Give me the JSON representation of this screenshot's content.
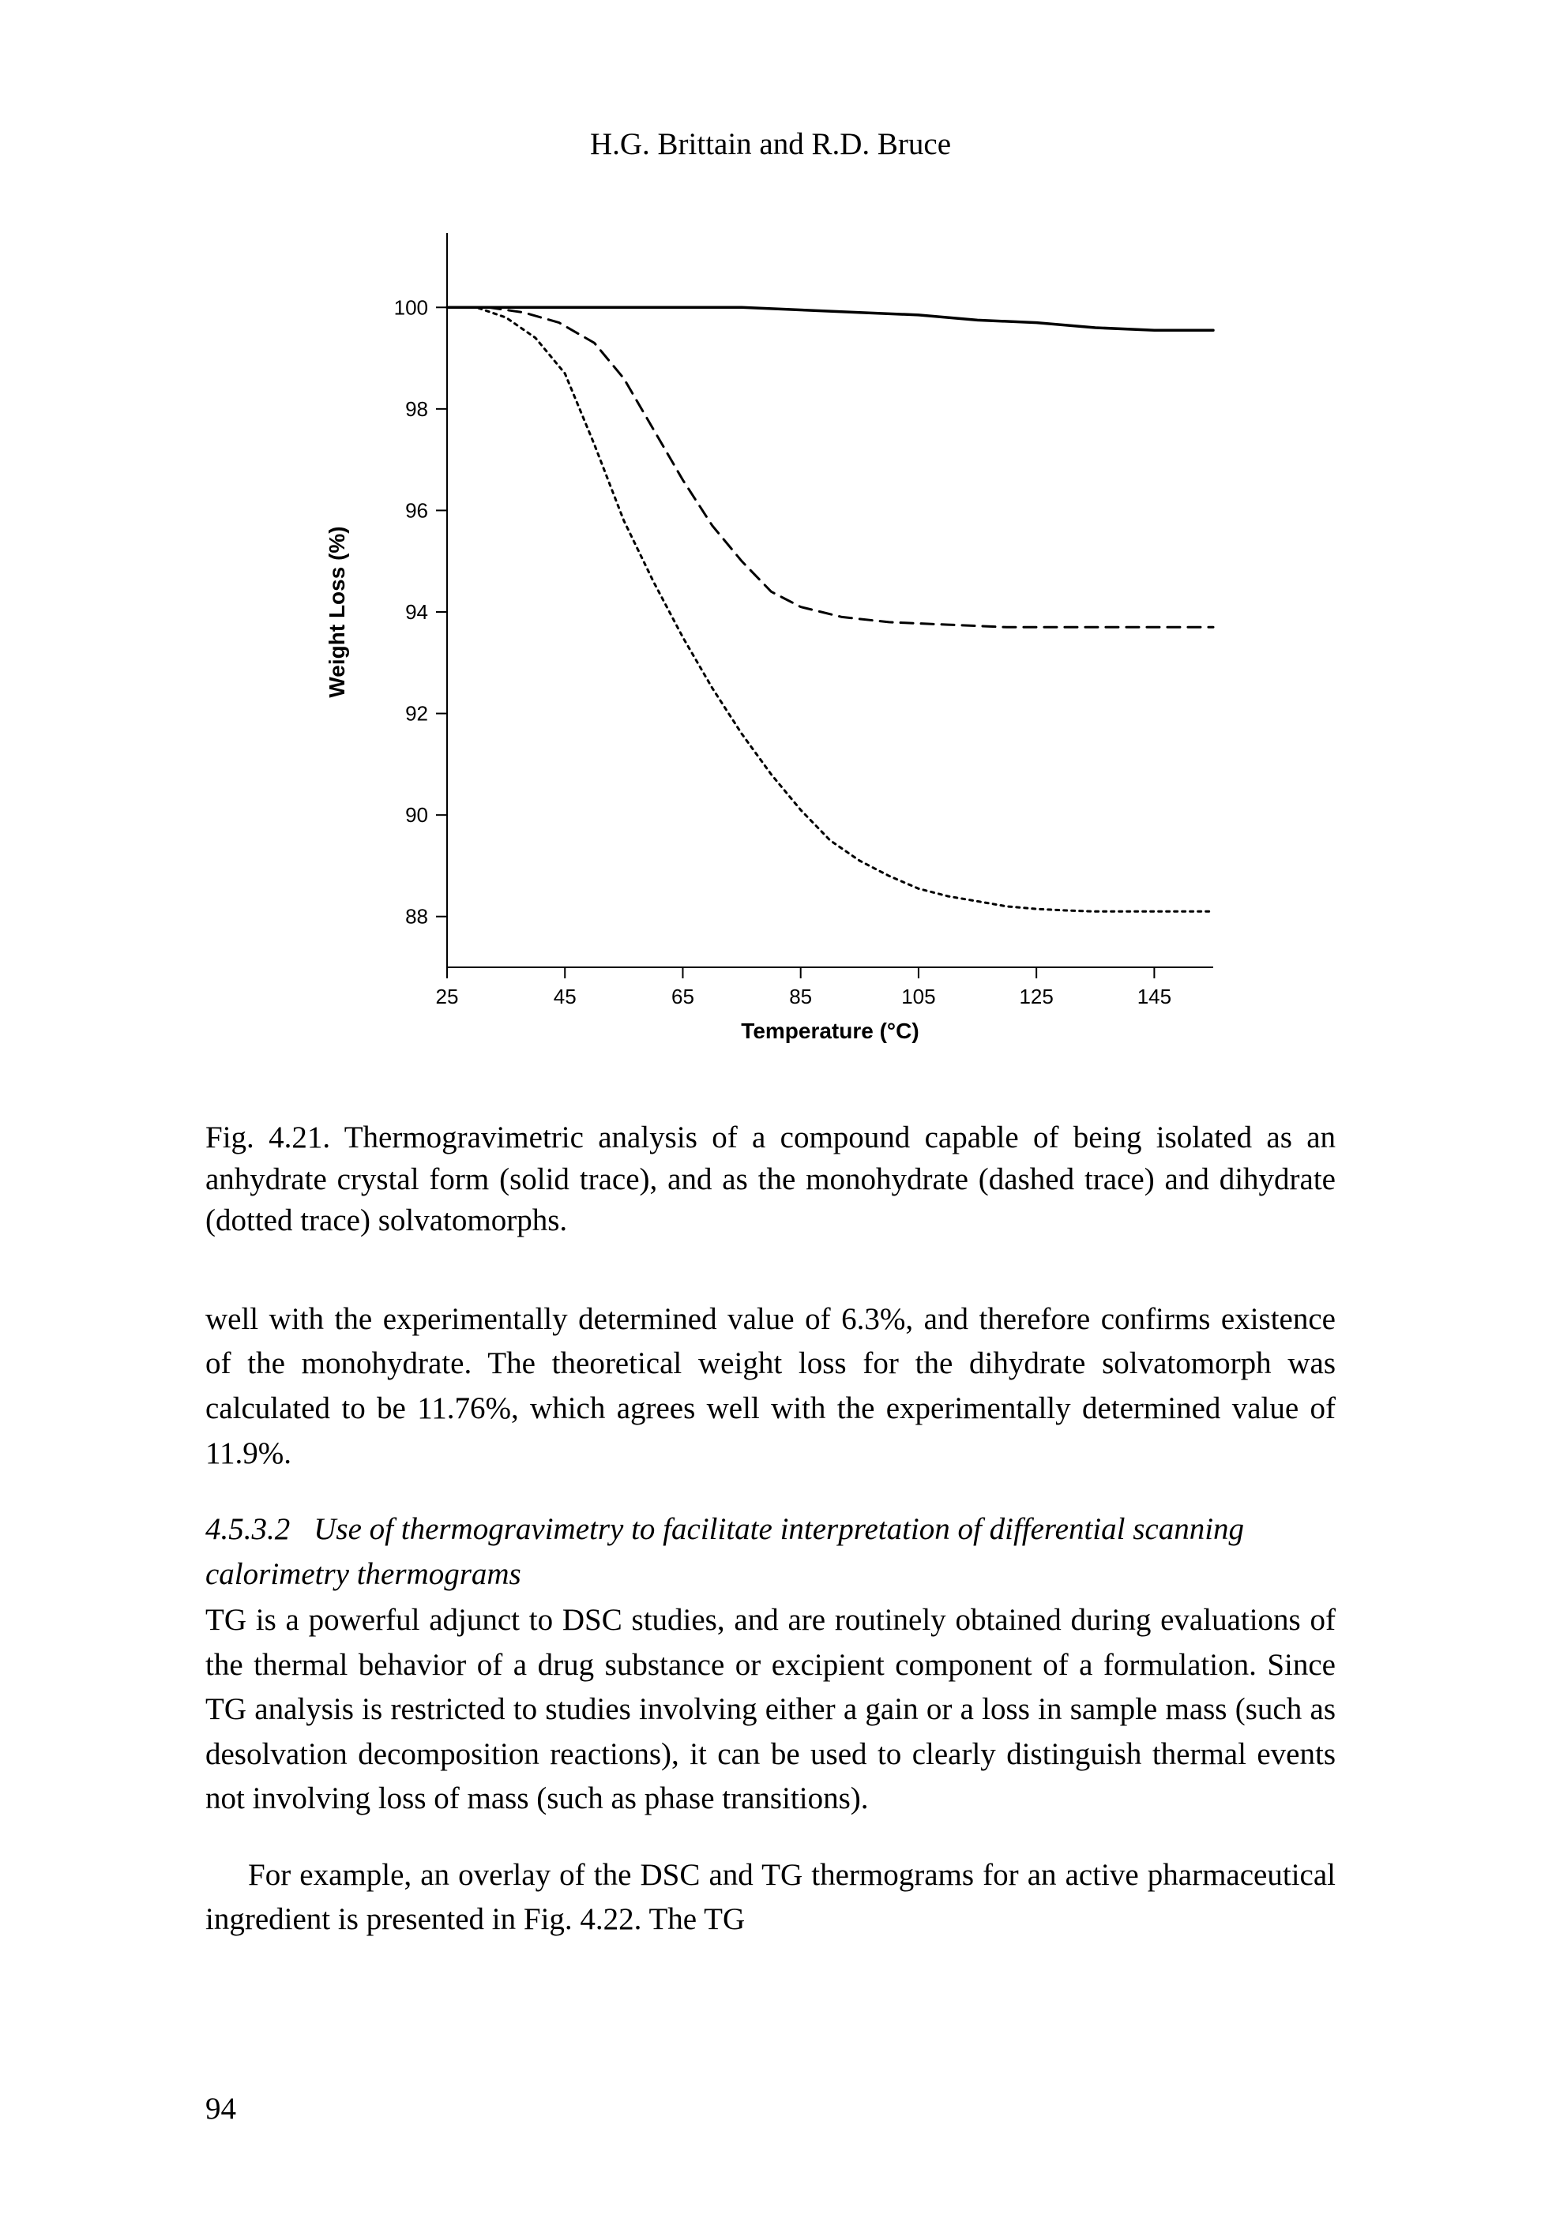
{
  "running_head": "H.G. Brittain and R.D. Bruce",
  "chart": {
    "type": "line",
    "xlabel": "Temperature (°C)",
    "ylabel": "Weight Loss (%)",
    "xlim": [
      25,
      155
    ],
    "ylim": [
      87,
      101
    ],
    "xticks": [
      25,
      45,
      65,
      85,
      105,
      125,
      145
    ],
    "yticks": [
      88,
      90,
      92,
      94,
      96,
      98,
      100
    ],
    "background_color": "#ffffff",
    "axis_color": "#000000",
    "axis_width": 2,
    "tick_fontsize": 26,
    "label_fontsize": 28,
    "label_fontweight": "700",
    "series": [
      {
        "name": "anhydrate",
        "stroke": "#000000",
        "stroke_width": 3.5,
        "dash": "none",
        "points": [
          [
            25,
            100.0
          ],
          [
            35,
            100.0
          ],
          [
            45,
            100.0
          ],
          [
            55,
            100.0
          ],
          [
            65,
            100.0
          ],
          [
            75,
            100.0
          ],
          [
            85,
            99.95
          ],
          [
            95,
            99.9
          ],
          [
            105,
            99.85
          ],
          [
            115,
            99.75
          ],
          [
            125,
            99.7
          ],
          [
            135,
            99.6
          ],
          [
            145,
            99.55
          ],
          [
            155,
            99.55
          ]
        ]
      },
      {
        "name": "monohydrate",
        "stroke": "#000000",
        "stroke_width": 3,
        "dash": "16 10",
        "points": [
          [
            25,
            100.0
          ],
          [
            32,
            100.0
          ],
          [
            38,
            99.9
          ],
          [
            44,
            99.7
          ],
          [
            50,
            99.3
          ],
          [
            55,
            98.6
          ],
          [
            60,
            97.6
          ],
          [
            65,
            96.6
          ],
          [
            70,
            95.7
          ],
          [
            75,
            95.0
          ],
          [
            80,
            94.4
          ],
          [
            85,
            94.1
          ],
          [
            92,
            93.9
          ],
          [
            100,
            93.8
          ],
          [
            110,
            93.75
          ],
          [
            120,
            93.7
          ],
          [
            130,
            93.7
          ],
          [
            140,
            93.7
          ],
          [
            150,
            93.7
          ],
          [
            155,
            93.7
          ]
        ]
      },
      {
        "name": "dihydrate",
        "stroke": "#000000",
        "stroke_width": 3,
        "dash": "4 6",
        "points": [
          [
            25,
            100.0
          ],
          [
            30,
            100.0
          ],
          [
            35,
            99.8
          ],
          [
            40,
            99.4
          ],
          [
            45,
            98.7
          ],
          [
            50,
            97.3
          ],
          [
            55,
            95.8
          ],
          [
            60,
            94.6
          ],
          [
            65,
            93.5
          ],
          [
            70,
            92.5
          ],
          [
            75,
            91.6
          ],
          [
            80,
            90.8
          ],
          [
            85,
            90.1
          ],
          [
            90,
            89.5
          ],
          [
            95,
            89.1
          ],
          [
            100,
            88.8
          ],
          [
            105,
            88.55
          ],
          [
            110,
            88.4
          ],
          [
            115,
            88.3
          ],
          [
            120,
            88.2
          ],
          [
            125,
            88.15
          ],
          [
            130,
            88.12
          ],
          [
            135,
            88.1
          ],
          [
            140,
            88.1
          ],
          [
            145,
            88.1
          ],
          [
            150,
            88.1
          ],
          [
            155,
            88.1
          ]
        ]
      }
    ]
  },
  "caption": "Fig. 4.21. Thermogravimetric analysis of a compound capable of being isolated as an anhydrate crystal form (solid trace), and as the monohydrate (dashed trace) and dihydrate (dotted trace) solvatomorphs.",
  "para1": "well with the experimentally determined value of 6.3%, and therefore confirms existence of the monohydrate. The theoretical weight loss for the dihydrate solvatomorph was calculated to be 11.76%, which agrees well with the experimentally determined value of 11.9%.",
  "section_number": "4.5.3.2",
  "section_title": "Use of thermogravimetry to facilitate interpretation of differential scanning calorimetry thermograms",
  "para2": "TG is a powerful adjunct to DSC studies, and are routinely obtained during evaluations of the thermal behavior of a drug substance or excipient component of a formulation. Since TG analysis is restricted to studies involving either a gain or a loss in sample mass (such as desolvation decomposition reactions), it can be used to clearly distinguish thermal events not involving loss of mass (such as phase transitions).",
  "para3": "For example, an overlay of the DSC and TG thermograms for an active pharmaceutical ingredient is presented in Fig. 4.22. The TG",
  "page_number": "94"
}
